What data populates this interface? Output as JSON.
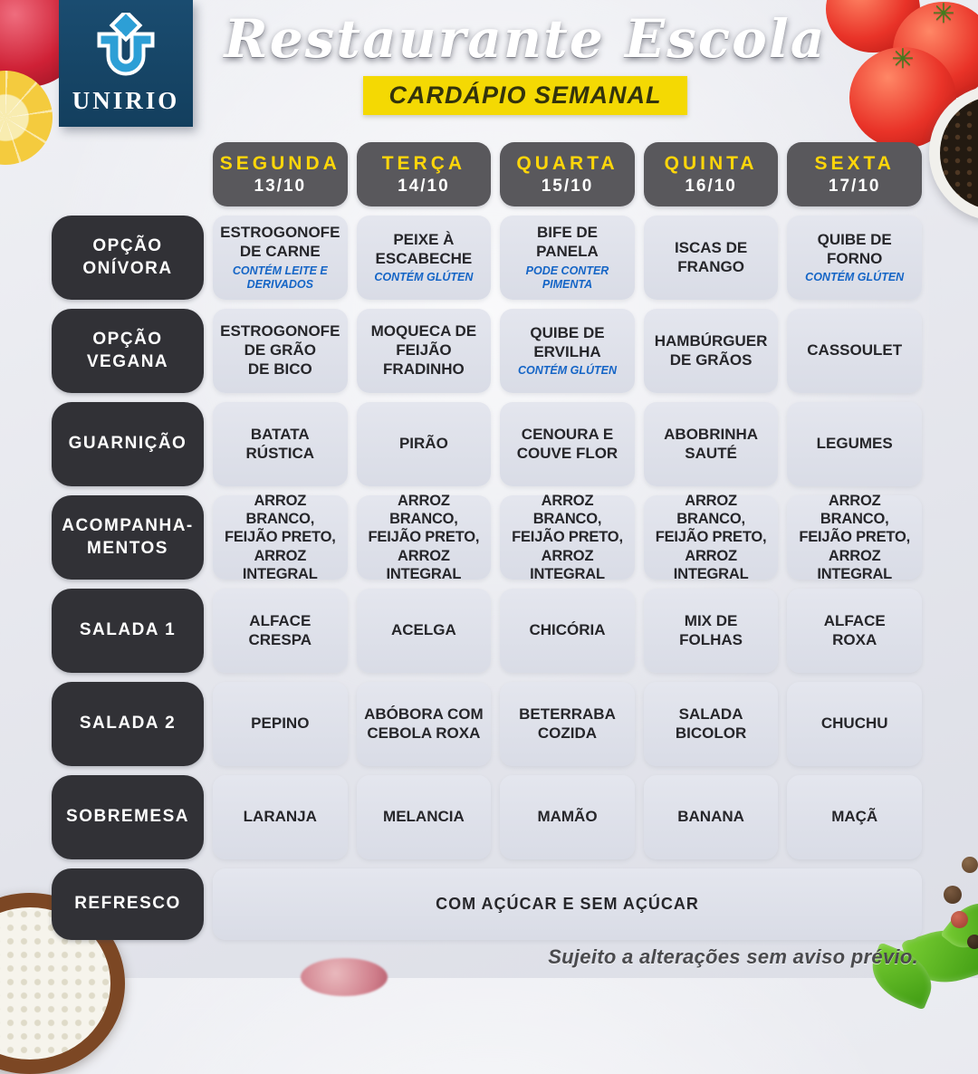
{
  "brand": {
    "logo_text": "UNIRIO"
  },
  "header": {
    "title": "Restaurante Escola",
    "subtitle": "CARDÁPIO SEMANAL"
  },
  "days": [
    {
      "name": "SEGUNDA",
      "date": "13/10"
    },
    {
      "name": "TERÇA",
      "date": "14/10"
    },
    {
      "name": "QUARTA",
      "date": "15/10"
    },
    {
      "name": "QUINTA",
      "date": "16/10"
    },
    {
      "name": "SEXTA",
      "date": "17/10"
    }
  ],
  "rows": [
    {
      "label_lines": [
        "OPÇÃO",
        "ONÍVORA"
      ],
      "cells": [
        {
          "text": "ESTROGONOFE\nDE CARNE",
          "note": "CONTÉM LEITE E\nDERIVADOS"
        },
        {
          "text": "PEIXE À\nESCABECHE",
          "note": "CONTÉM GLÚTEN"
        },
        {
          "text": "BIFE DE\nPANELA",
          "note": "PODE CONTER\nPIMENTA"
        },
        {
          "text": "ISCAS DE\nFRANGO"
        },
        {
          "text": "QUIBE DE\nFORNO",
          "note": "CONTÉM GLÚTEN"
        }
      ]
    },
    {
      "label_lines": [
        "OPÇÃO",
        "VEGANA"
      ],
      "cells": [
        {
          "text": "ESTROGONOFE\nDE GRÃO\nDE BICO"
        },
        {
          "text": "MOQUECA DE\nFEIJÃO\nFRADINHO"
        },
        {
          "text": "QUIBE DE\nERVILHA",
          "note": "CONTÉM GLÚTEN"
        },
        {
          "text": "HAMBÚRGUER\nDE GRÃOS"
        },
        {
          "text": "CASSOULET"
        }
      ]
    },
    {
      "label_lines": [
        "GUARNIÇÃO"
      ],
      "cells": [
        {
          "text": "BATATA\nRÚSTICA"
        },
        {
          "text": "PIRÃO"
        },
        {
          "text": "CENOURA E\nCOUVE FLOR"
        },
        {
          "text": "ABOBRINHA\nSAUTÉ"
        },
        {
          "text": "LEGUMES"
        }
      ]
    },
    {
      "label_lines": [
        "ACOMPANHA-",
        "MENTOS"
      ],
      "emphasis": true,
      "cells": [
        {
          "text": "ARROZ BRANCO,\nFEIJÃO PRETO,\nARROZ INTEGRAL"
        },
        {
          "text": "ARROZ BRANCO,\nFEIJÃO PRETO,\nARROZ INTEGRAL"
        },
        {
          "text": "ARROZ BRANCO,\nFEIJÃO PRETO,\nARROZ INTEGRAL"
        },
        {
          "text": "ARROZ BRANCO,\nFEIJÃO PRETO,\nARROZ INTEGRAL"
        },
        {
          "text": "ARROZ BRANCO,\nFEIJÃO PRETO,\nARROZ INTEGRAL"
        }
      ]
    },
    {
      "label_lines": [
        "SALADA 1"
      ],
      "cells": [
        {
          "text": "ALFACE\nCRESPA"
        },
        {
          "text": "ACELGA"
        },
        {
          "text": "CHICÓRIA"
        },
        {
          "text": "MIX DE\nFOLHAS"
        },
        {
          "text": "ALFACE\nROXA"
        }
      ]
    },
    {
      "label_lines": [
        "SALADA 2"
      ],
      "cells": [
        {
          "text": "PEPINO"
        },
        {
          "text": "ABÓBORA COM\nCEBOLA ROXA"
        },
        {
          "text": "BETERRABA\nCOZIDA"
        },
        {
          "text": "SALADA\nBICOLOR"
        },
        {
          "text": "CHUCHU"
        }
      ]
    },
    {
      "label_lines": [
        "SOBREMESA"
      ],
      "cells": [
        {
          "text": "LARANJA"
        },
        {
          "text": "MELANCIA"
        },
        {
          "text": "MAMÃO"
        },
        {
          "text": "BANANA"
        },
        {
          "text": "MAÇÃ"
        }
      ]
    },
    {
      "label_lines": [
        "REFRESCO"
      ],
      "full_width": true,
      "cells": [
        {
          "text": "COM AÇÚCAR E SEM AÇÚCAR"
        }
      ]
    }
  ],
  "footer": {
    "disclaimer": "Sujeito a alterações sem aviso prévio."
  },
  "colors": {
    "accent_yellow": "#F4D903",
    "note_blue": "#1565C6",
    "row_label_dark": "#313136",
    "day_header_gray": "#59585C",
    "cell_bg": "#DDE0E9",
    "logo_navy": "#16466B"
  }
}
